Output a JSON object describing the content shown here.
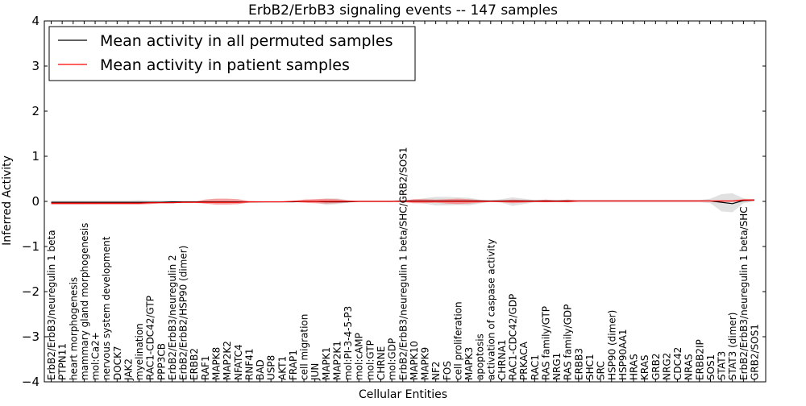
{
  "chart_data": {
    "type": "line",
    "title": "ErbB2/ErbB3 signaling events -- 147 samples",
    "xlabel": "Cellular Entities",
    "ylabel": "Inferred Activity",
    "ylim": [
      -4,
      4
    ],
    "yticks": [
      -4,
      -3,
      -2,
      -1,
      0,
      1,
      2,
      3,
      4
    ],
    "ytick_labels": [
      "−4",
      "−3",
      "−2",
      "−1",
      "0",
      "1",
      "2",
      "3",
      "4"
    ],
    "legend_position": "top-left",
    "grid": false,
    "colors": {
      "permuted": "#000000",
      "patient": "#ff0000",
      "patient_band": "#f08080",
      "permuted_band": "#c8c8c8"
    },
    "categories": [
      "ErbB2/ErbB3/neuregulin 1 beta",
      "PTPN11",
      "heart morphogenesis",
      "mammary gland morphogenesis",
      "mol:Ca2+",
      "nervous system development",
      "DOCK7",
      "JAK2",
      "myelination",
      "RAC1-CDC42/GTP",
      "PPP3CB",
      "ErbB2/ErbB3/neuregulin 2",
      "ErbB2/ErbB2/HSP90 (dimer)",
      "ERBB2",
      "RAF1",
      "MAPK8",
      "MAP2K2",
      "NFATC4",
      "RNF41",
      "BAD",
      "USP8",
      "AKT1",
      "FRAP1",
      "cell migration",
      "JUN",
      "MAPK1",
      "MAP2K1",
      "mol:PI-3-4-5-P3",
      "mol:cAMP",
      "mol:GTP",
      "CHRNE",
      "mol:GDP",
      "ErbB2/ErbB3/neuregulin 1 beta/SHC/GRB2/SOS1",
      "MAPK10",
      "MAPK9",
      "NF2",
      "FOS",
      "cell proliferation",
      "MAPK3",
      "apoptosis",
      "activation of caspase activity",
      "CHRNA1",
      "RAC1-CDC42/GDP",
      "PRKACA",
      "RAC1",
      "RAS family/GTP",
      "NRG1",
      "RAS family/GDP",
      "ERBB3",
      "SHC1",
      "SRC",
      "HSP90 (dimer)",
      "HSP90AA1",
      "HRAS",
      "KRAS",
      "GRB2",
      "NRG2",
      "CDC42",
      "NRAS",
      "ERBB2IP",
      "SOS1",
      "STAT3",
      "STAT3 (dimer)",
      "ErbB2/ErbB3/neuregulin 1 beta/SHC",
      "GRB2/SOS1"
    ],
    "series": [
      {
        "name": "Mean activity in all permuted samples",
        "values": [
          -0.02,
          -0.02,
          -0.02,
          -0.02,
          -0.02,
          -0.02,
          -0.02,
          -0.02,
          -0.02,
          -0.02,
          -0.02,
          -0.01,
          -0.01,
          -0.01,
          -0.01,
          -0.01,
          -0.01,
          -0.01,
          -0.01,
          -0.01,
          -0.01,
          -0.01,
          -0.01,
          0.0,
          0.0,
          -0.01,
          -0.01,
          -0.01,
          0.0,
          0.0,
          0.0,
          0.0,
          0.01,
          0.01,
          0.01,
          0.01,
          0.01,
          0.01,
          0.01,
          0.01,
          0.01,
          0.01,
          0.01,
          0.01,
          0.01,
          0.01,
          0.01,
          0.01,
          0.01,
          0.01,
          0.01,
          0.01,
          0.01,
          0.01,
          0.01,
          0.01,
          0.01,
          0.01,
          0.01,
          0.01,
          0.01,
          -0.02,
          -0.05,
          0.02,
          0.03
        ],
        "band_lower": [
          -0.07,
          -0.07,
          -0.07,
          -0.07,
          -0.06,
          -0.06,
          -0.06,
          -0.06,
          -0.05,
          -0.05,
          -0.04,
          -0.04,
          -0.04,
          -0.03,
          -0.03,
          -0.03,
          -0.03,
          -0.03,
          -0.03,
          -0.03,
          -0.02,
          -0.02,
          -0.02,
          -0.02,
          -0.02,
          -0.08,
          -0.06,
          -0.03,
          -0.01,
          -0.01,
          -0.01,
          -0.01,
          0.0,
          -0.02,
          -0.05,
          -0.09,
          -0.09,
          -0.08,
          -0.09,
          -0.05,
          -0.01,
          -0.03,
          -0.1,
          -0.06,
          -0.02,
          -0.02,
          -0.02,
          -0.02,
          -0.02,
          -0.02,
          -0.02,
          -0.02,
          -0.02,
          -0.02,
          -0.02,
          -0.02,
          -0.02,
          -0.02,
          -0.02,
          -0.02,
          -0.04,
          -0.22,
          -0.24,
          -0.04,
          0.0
        ],
        "band_upper": [
          0.02,
          0.02,
          0.02,
          0.02,
          0.02,
          0.02,
          0.02,
          0.02,
          0.03,
          0.02,
          0.02,
          0.02,
          0.01,
          0.01,
          0.01,
          0.01,
          0.01,
          0.01,
          0.01,
          0.01,
          0.01,
          0.01,
          0.01,
          0.02,
          0.02,
          0.06,
          0.07,
          0.03,
          0.01,
          0.01,
          0.01,
          0.01,
          0.02,
          0.04,
          0.07,
          0.1,
          0.1,
          0.09,
          0.08,
          0.04,
          0.02,
          0.05,
          0.09,
          0.06,
          0.03,
          0.03,
          0.03,
          0.03,
          0.03,
          0.03,
          0.03,
          0.03,
          0.03,
          0.03,
          0.03,
          0.03,
          0.03,
          0.03,
          0.03,
          0.03,
          0.06,
          0.16,
          0.18,
          0.07,
          0.04
        ]
      },
      {
        "name": "Mean activity in patient samples",
        "values": [
          -0.04,
          -0.04,
          -0.04,
          -0.04,
          -0.04,
          -0.04,
          -0.04,
          -0.04,
          -0.04,
          -0.03,
          -0.03,
          -0.03,
          -0.02,
          -0.02,
          -0.02,
          -0.02,
          -0.02,
          -0.02,
          -0.01,
          -0.01,
          -0.01,
          -0.01,
          0.0,
          0.0,
          0.0,
          0.0,
          0.0,
          0.0,
          0.0,
          0.0,
          0.0,
          0.0,
          0.0,
          0.0,
          0.0,
          0.0,
          0.0,
          0.0,
          0.0,
          0.0,
          0.0,
          0.0,
          0.0,
          0.0,
          0.0,
          0.0,
          0.0,
          0.0,
          0.01,
          0.01,
          0.01,
          0.01,
          0.01,
          0.01,
          0.01,
          0.01,
          0.01,
          0.01,
          0.01,
          0.01,
          0.01,
          0.01,
          0.01,
          0.03,
          0.03
        ],
        "band_lower": [
          -0.07,
          -0.07,
          -0.07,
          -0.07,
          -0.07,
          -0.07,
          -0.07,
          -0.07,
          -0.07,
          -0.06,
          -0.04,
          -0.04,
          -0.03,
          -0.03,
          -0.05,
          -0.07,
          -0.07,
          -0.06,
          -0.03,
          -0.02,
          -0.01,
          -0.01,
          -0.01,
          -0.03,
          -0.04,
          -0.05,
          -0.04,
          -0.02,
          -0.01,
          -0.01,
          -0.01,
          -0.01,
          -0.01,
          -0.04,
          -0.04,
          -0.03,
          -0.05,
          -0.06,
          -0.05,
          -0.03,
          -0.01,
          -0.02,
          -0.04,
          -0.03,
          -0.01,
          -0.02,
          -0.01,
          -0.02,
          -0.01,
          -0.01,
          -0.01,
          -0.01,
          -0.01,
          -0.01,
          -0.01,
          -0.01,
          -0.01,
          -0.01,
          -0.01,
          -0.01,
          -0.01,
          -0.01,
          -0.01,
          0.0,
          0.01
        ],
        "band_upper": [
          -0.02,
          -0.02,
          -0.02,
          -0.02,
          -0.02,
          -0.02,
          -0.02,
          -0.02,
          -0.01,
          -0.01,
          -0.01,
          -0.01,
          -0.01,
          -0.01,
          0.04,
          0.06,
          0.06,
          0.05,
          0.01,
          0.0,
          0.0,
          0.0,
          0.01,
          0.04,
          0.05,
          0.06,
          0.05,
          0.02,
          0.01,
          0.01,
          0.01,
          0.01,
          0.01,
          0.05,
          0.05,
          0.04,
          0.05,
          0.06,
          0.05,
          0.03,
          0.01,
          0.02,
          0.04,
          0.03,
          0.02,
          0.04,
          0.02,
          0.04,
          0.02,
          0.02,
          0.02,
          0.02,
          0.02,
          0.02,
          0.02,
          0.02,
          0.02,
          0.02,
          0.02,
          0.02,
          0.02,
          0.02,
          0.02,
          0.05,
          0.05
        ]
      }
    ]
  }
}
